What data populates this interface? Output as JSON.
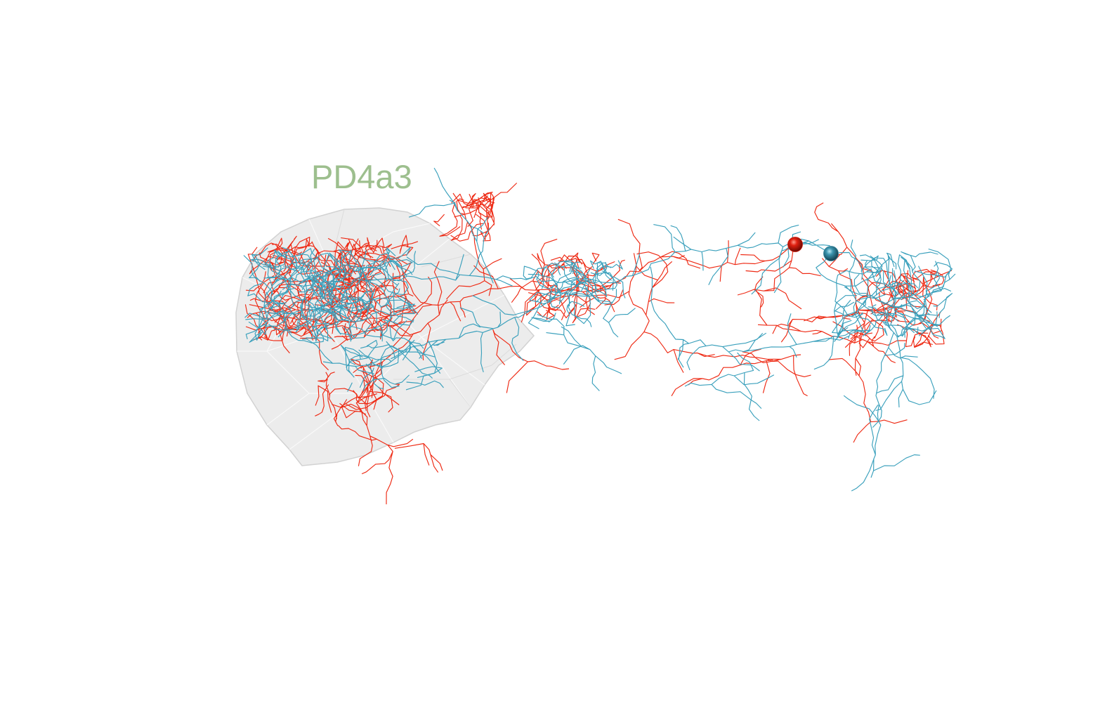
{
  "neuropil": {
    "label": "PD4a3",
    "label_color": "#9dbf8e",
    "mesh_color": "#cfcfcf"
  },
  "neurons": [
    {
      "id": "neuron-red",
      "color": "#ee2a14",
      "soma_color": "#c81a0c"
    },
    {
      "id": "neuron-blue",
      "color": "#3aa0bc",
      "soma_color": "#2f7f97"
    }
  ]
}
